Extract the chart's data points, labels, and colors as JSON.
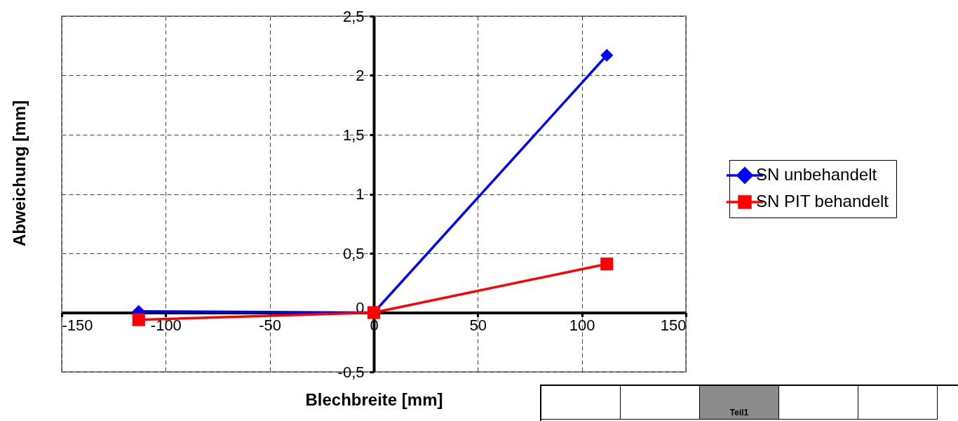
{
  "chart_data": {
    "type": "line",
    "xlabel": "Blechbreite [mm]",
    "ylabel": "Abweichung [mm]",
    "xlim": [
      -150,
      150
    ],
    "xticks": [
      -150,
      -100,
      -50,
      0,
      50,
      100,
      150
    ],
    "ylim": [
      -0.5,
      2.5
    ],
    "yticks": [
      {
        "value": -0.5,
        "label": "-0,5"
      },
      0,
      {
        "value": 0.5,
        "label": "0,5"
      },
      1,
      {
        "value": 1.5,
        "label": "1,5"
      },
      2,
      {
        "value": 2.5,
        "label": "2,5"
      }
    ],
    "x": [
      -113,
      0,
      112
    ],
    "series": [
      {
        "name": "SN unbehandelt",
        "color": "#0000ff",
        "marker": "diamond",
        "values": [
          0.01,
          0,
          2.17
        ]
      },
      {
        "name": "SN PIT behandelt",
        "color": "#ff0000",
        "marker": "square",
        "values": [
          -0.06,
          0,
          0.41
        ]
      }
    ],
    "grid": true,
    "legend": "right",
    "line_style": "solid",
    "annotations": [
      "Teil1"
    ]
  }
}
